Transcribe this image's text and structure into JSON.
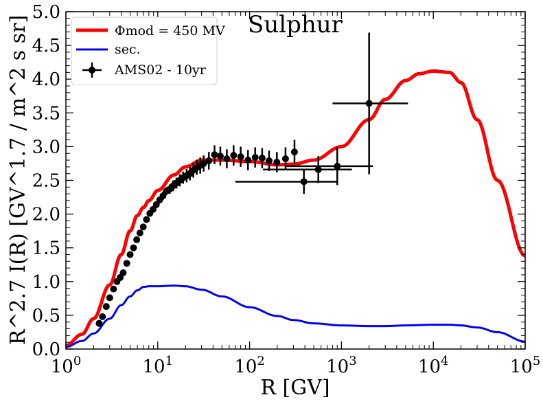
{
  "chart_data": {
    "type": "line",
    "title": "Sulphur",
    "xlabel": "R [GV]",
    "ylabel": "R^2.7 I(R) [GV^1.7 / m^2 s sr]",
    "xscale": "log",
    "xlim": [
      1,
      100000
    ],
    "ylim": [
      0,
      5.0
    ],
    "x_tick_labels": [
      "10^0",
      "10^1",
      "10^2",
      "10^3",
      "10^4",
      "10^5"
    ],
    "y_tick_labels": [
      "0.0",
      "0.5",
      "1.0",
      "1.5",
      "2.0",
      "2.5",
      "3.0",
      "3.5",
      "4.0",
      "4.5",
      "5.0"
    ],
    "legend_position": "top-left",
    "series": [
      {
        "name": "Φmod = 450 MV",
        "color": "#ff0000",
        "style": "line",
        "x": [
          1,
          1.5,
          2,
          3,
          4,
          5,
          6,
          7,
          8,
          10,
          15,
          20,
          30,
          50,
          100,
          200,
          300,
          500,
          1000,
          2000,
          3000,
          5000,
          7000,
          10000,
          15000,
          20000,
          30000,
          50000,
          100000
        ],
        "y": [
          0.05,
          0.22,
          0.45,
          0.95,
          1.4,
          1.75,
          1.98,
          2.1,
          2.2,
          2.35,
          2.58,
          2.7,
          2.8,
          2.8,
          2.78,
          2.73,
          2.74,
          2.8,
          3.0,
          3.4,
          3.7,
          3.98,
          4.08,
          4.12,
          4.1,
          3.95,
          3.4,
          2.5,
          1.38
        ]
      },
      {
        "name": "sec.",
        "color": "#0000ff",
        "style": "line",
        "x": [
          1,
          1.5,
          2,
          3,
          4,
          5,
          6,
          7,
          8,
          10,
          15,
          20,
          30,
          50,
          100,
          200,
          300,
          500,
          1000,
          2000,
          3000,
          5000,
          10000,
          15000,
          20000,
          30000,
          50000,
          100000
        ],
        "y": [
          0.03,
          0.12,
          0.23,
          0.45,
          0.65,
          0.78,
          0.87,
          0.92,
          0.93,
          0.93,
          0.94,
          0.93,
          0.88,
          0.78,
          0.62,
          0.49,
          0.43,
          0.38,
          0.35,
          0.34,
          0.34,
          0.35,
          0.36,
          0.36,
          0.35,
          0.32,
          0.25,
          0.11
        ]
      },
      {
        "name": "AMS02 - 10yr",
        "color": "#000000",
        "style": "errorbar",
        "x": [
          2.3,
          2.5,
          2.75,
          3.0,
          3.3,
          3.6,
          3.9,
          4.2,
          4.6,
          5.0,
          5.45,
          5.9,
          6.4,
          6.95,
          7.55,
          8.2,
          8.9,
          9.65,
          10.5,
          11.4,
          12.4,
          13.5,
          14.7,
          16.0,
          17.4,
          18.9,
          20.6,
          22.4,
          24.4,
          26.6,
          29.0,
          31.6,
          36.0,
          41.5,
          48.0,
          56.5,
          67.0,
          80.0,
          96.0,
          115.0,
          137.0,
          163.0,
          198.0,
          246.0,
          308.0,
          390.0,
          560.0,
          900.0,
          2000.0
        ],
        "y": [
          0.38,
          0.48,
          0.63,
          0.76,
          0.89,
          1.0,
          1.06,
          1.13,
          1.27,
          1.4,
          1.5,
          1.62,
          1.72,
          1.81,
          1.92,
          2.01,
          2.07,
          2.14,
          2.21,
          2.27,
          2.34,
          2.37,
          2.42,
          2.46,
          2.5,
          2.54,
          2.57,
          2.6,
          2.65,
          2.69,
          2.72,
          2.75,
          2.79,
          2.88,
          2.86,
          2.82,
          2.87,
          2.85,
          2.8,
          2.84,
          2.83,
          2.79,
          2.77,
          2.82,
          2.92,
          2.48,
          2.66,
          2.71,
          3.64
        ],
        "yerr": [
          0.02,
          0.02,
          0.02,
          0.02,
          0.02,
          0.02,
          0.02,
          0.02,
          0.02,
          0.03,
          0.03,
          0.03,
          0.03,
          0.03,
          0.04,
          0.04,
          0.04,
          0.05,
          0.05,
          0.06,
          0.06,
          0.07,
          0.08,
          0.08,
          0.09,
          0.09,
          0.1,
          0.1,
          0.11,
          0.11,
          0.12,
          0.12,
          0.13,
          0.14,
          0.14,
          0.14,
          0.15,
          0.15,
          0.15,
          0.15,
          0.15,
          0.15,
          0.15,
          0.17,
          0.18,
          0.18,
          0.2,
          0.28,
          1.05
        ],
        "xerr_lo": [
          0,
          0,
          0,
          0,
          0,
          0,
          0,
          0,
          0,
          0,
          0,
          0,
          0,
          0,
          0,
          0,
          0,
          0,
          0,
          0,
          0,
          0,
          0,
          0,
          0,
          0,
          0,
          0,
          0,
          0,
          0,
          0,
          0,
          0,
          0,
          0,
          0,
          0,
          0,
          0,
          0,
          0,
          0,
          0,
          0,
          320,
          420,
          650,
          1200
        ],
        "xerr_hi": [
          0,
          0,
          0,
          0,
          0,
          0,
          0,
          0,
          0,
          0,
          0,
          0,
          0,
          0,
          0,
          0,
          0,
          0,
          0,
          0,
          0,
          0,
          0,
          0,
          0,
          0,
          0,
          0,
          0,
          0,
          0,
          0,
          0,
          0,
          0,
          0,
          0,
          0,
          0,
          0,
          0,
          0,
          0,
          0,
          0,
          490,
          740,
          1300,
          3300
        ]
      }
    ]
  }
}
